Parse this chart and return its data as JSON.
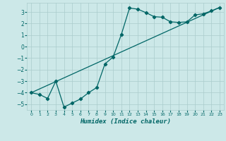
{
  "title": "",
  "xlabel": "Humidex (Indice chaleur)",
  "ylabel": "",
  "background_color": "#cce8e8",
  "grid_color": "#aacccc",
  "line_color": "#006666",
  "xlim": [
    -0.5,
    23.5
  ],
  "ylim": [
    -5.5,
    3.8
  ],
  "xticks": [
    0,
    1,
    2,
    3,
    4,
    5,
    6,
    7,
    8,
    9,
    10,
    11,
    12,
    13,
    14,
    15,
    16,
    17,
    18,
    19,
    20,
    21,
    22,
    23
  ],
  "yticks": [
    -5,
    -4,
    -3,
    -2,
    -1,
    0,
    1,
    2,
    3
  ],
  "curve1_x": [
    0,
    1,
    2,
    3,
    4,
    5,
    6,
    7,
    8,
    9,
    10,
    11,
    12,
    13,
    14,
    15,
    16,
    17,
    18,
    19,
    20,
    21,
    22,
    23
  ],
  "curve1_y": [
    -4.0,
    -4.15,
    -4.5,
    -3.0,
    -5.25,
    -4.9,
    -4.55,
    -4.0,
    -3.55,
    -1.5,
    -0.9,
    1.05,
    3.35,
    3.25,
    2.95,
    2.6,
    2.55,
    2.15,
    2.1,
    2.15,
    2.75,
    2.85,
    3.1,
    3.4
  ],
  "curve2_x": [
    0,
    23
  ],
  "curve2_y": [
    -4.0,
    3.4
  ]
}
